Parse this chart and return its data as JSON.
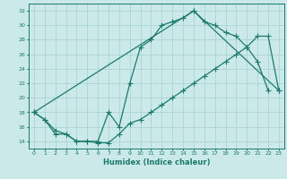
{
  "xlabel": "Humidex (Indice chaleur)",
  "xlim": [
    -0.5,
    23.5
  ],
  "ylim": [
    13.0,
    33.0
  ],
  "xticks": [
    0,
    1,
    2,
    3,
    4,
    5,
    6,
    7,
    8,
    9,
    10,
    11,
    12,
    13,
    14,
    15,
    16,
    17,
    18,
    19,
    20,
    21,
    22,
    23
  ],
  "yticks": [
    14,
    16,
    18,
    20,
    22,
    24,
    26,
    28,
    30,
    32
  ],
  "background_color": "#cce9e9",
  "grid_color": "#aad4d4",
  "line_color": "#1a7a6e",
  "line1_x": [
    0,
    1,
    2,
    3,
    4,
    5,
    6,
    7,
    8,
    9,
    10,
    11,
    12,
    13,
    14,
    15,
    16,
    17,
    18,
    19,
    20,
    21,
    22
  ],
  "line1_y": [
    18,
    17,
    15,
    15,
    14,
    14,
    14,
    18,
    16,
    22,
    27,
    28,
    30,
    30.5,
    31,
    32,
    30.5,
    30,
    29,
    28.5,
    27,
    25,
    21
  ],
  "line2_x": [
    0,
    1,
    2,
    3,
    4,
    5,
    6,
    7,
    8,
    9,
    10,
    11,
    12,
    13,
    14,
    15,
    16,
    17,
    18,
    19,
    20,
    21,
    22,
    23
  ],
  "line2_y": [
    18,
    17,
    15.5,
    15,
    14,
    14,
    13.8,
    13.8,
    15.0,
    16.5,
    17,
    18,
    19,
    20,
    21,
    22,
    23,
    24,
    25,
    26,
    27,
    28.5,
    28.5,
    21
  ],
  "line3_x": [
    0,
    15,
    23
  ],
  "line3_y": [
    18,
    32,
    21
  ]
}
